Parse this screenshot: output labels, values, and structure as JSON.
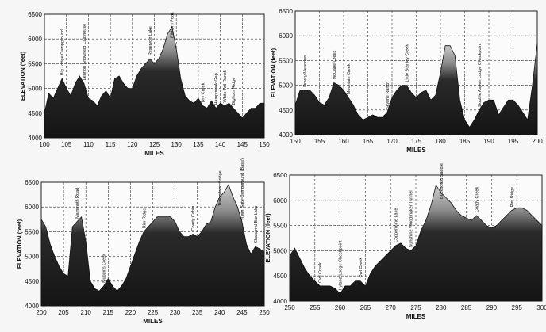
{
  "chart_data": [
    {
      "type": "area",
      "xlabel": "MILES",
      "ylabel": "ELEVATION (feet)",
      "xlim": [
        100,
        150
      ],
      "ylim": [
        4000,
        6500
      ],
      "xticks": [
        100,
        105,
        110,
        115,
        120,
        125,
        130,
        135,
        140,
        145,
        150
      ],
      "yticks": [
        4000,
        4500,
        5000,
        5500,
        6000,
        6500
      ],
      "x": [
        100,
        101,
        102,
        103,
        104,
        105,
        106,
        107,
        108,
        109,
        110,
        111,
        112,
        113,
        114,
        115,
        116,
        117,
        118,
        119,
        120,
        121,
        122,
        123,
        124,
        125,
        126,
        127,
        128,
        129,
        130,
        131,
        132,
        133,
        134,
        135,
        136,
        137,
        138,
        139,
        140,
        141,
        142,
        143,
        144,
        145,
        146,
        147,
        148,
        149,
        150
      ],
      "y": [
        4500,
        4900,
        4800,
        5000,
        5200,
        5000,
        4850,
        5100,
        5250,
        5100,
        4800,
        4750,
        4650,
        4850,
        4950,
        4800,
        5200,
        5250,
        5100,
        5000,
        5000,
        5250,
        5400,
        5500,
        5600,
        5500,
        5600,
        5800,
        6100,
        6250,
        5800,
        5200,
        4850,
        4750,
        4700,
        4800,
        4650,
        4600,
        4750,
        4600,
        4700,
        4650,
        4700,
        4600,
        4500,
        4400,
        4500,
        4600,
        4600,
        4700,
        4700
      ],
      "annotations": [
        {
          "x": 104,
          "text": "Big Lodge Campground"
        },
        {
          "x": 109,
          "text": "Lenhoh Snowfield Clubhouse"
        },
        {
          "x": 124,
          "text": "Reservoir Lake"
        },
        {
          "x": 129,
          "text": "Elkhorn Peak"
        },
        {
          "x": 136,
          "text": "Dry Creek"
        },
        {
          "x": 139,
          "text": "Hampbrook Gap"
        },
        {
          "x": 141,
          "text": "White Tail Ranch"
        },
        {
          "x": 143,
          "text": "Bighorn Ridge"
        }
      ]
    },
    {
      "type": "area",
      "xlabel": "MILES",
      "ylabel": "ELEVATION (feet)",
      "xlim": [
        150,
        200
      ],
      "ylim": [
        4000,
        6500
      ],
      "xticks": [
        150,
        155,
        160,
        165,
        170,
        175,
        180,
        185,
        190,
        195,
        200
      ],
      "yticks": [
        4000,
        4500,
        5000,
        5500,
        6000,
        6500
      ],
      "x": [
        150,
        151,
        152,
        153,
        154,
        155,
        156,
        157,
        158,
        159,
        160,
        161,
        162,
        163,
        164,
        165,
        166,
        167,
        168,
        169,
        170,
        171,
        172,
        173,
        174,
        175,
        176,
        177,
        178,
        179,
        180,
        181,
        182,
        183,
        184,
        185,
        186,
        187,
        188,
        189,
        190,
        191,
        192,
        193,
        194,
        195,
        196,
        197,
        198,
        199,
        200
      ],
      "y": [
        4600,
        4900,
        4900,
        4900,
        4800,
        4650,
        4600,
        4750,
        5050,
        5000,
        4900,
        4750,
        4600,
        4400,
        4300,
        4350,
        4400,
        4350,
        4350,
        4450,
        4750,
        4900,
        5000,
        5000,
        4850,
        4750,
        4850,
        4900,
        4700,
        4800,
        5250,
        5800,
        5800,
        5600,
        4700,
        4300,
        4150,
        4300,
        4500,
        4650,
        4700,
        4700,
        4400,
        4550,
        4700,
        4700,
        4600,
        4450,
        4300,
        5000,
        5850
      ],
      "annotations": [
        {
          "x": 152,
          "text": "Dowry Meadows"
        },
        {
          "x": 158,
          "text": "McCabe Creek"
        },
        {
          "x": 161,
          "text": "Mountain Creek"
        },
        {
          "x": 169,
          "text": "Skyline Ranch"
        },
        {
          "x": 173,
          "text": "Little Stanley Creek"
        },
        {
          "x": 188,
          "text": "Double Aspen Lodge Checkpoint"
        }
      ]
    },
    {
      "type": "area",
      "xlabel": "MILES",
      "ylabel": "ELEVATION (feet)",
      "xlim": [
        200,
        250
      ],
      "ylim": [
        4000,
        6500
      ],
      "xticks": [
        200,
        205,
        210,
        215,
        220,
        225,
        230,
        235,
        240,
        245,
        250
      ],
      "yticks": [
        4000,
        4500,
        5000,
        5500,
        6000,
        6500
      ],
      "x": [
        200,
        201,
        202,
        203,
        204,
        205,
        206,
        207,
        208,
        209,
        210,
        211,
        212,
        213,
        214,
        215,
        216,
        217,
        218,
        219,
        220,
        221,
        222,
        223,
        224,
        225,
        226,
        227,
        228,
        229,
        230,
        231,
        232,
        233,
        234,
        235,
        236,
        237,
        238,
        239,
        240,
        241,
        242,
        243,
        244,
        245,
        246,
        247,
        248,
        249,
        250
      ],
      "y": [
        5750,
        5600,
        5250,
        5000,
        4800,
        4650,
        4600,
        5600,
        5700,
        5800,
        5300,
        4500,
        4350,
        4300,
        4400,
        4550,
        4400,
        4300,
        4400,
        4550,
        4800,
        5050,
        5300,
        5500,
        5600,
        5700,
        5800,
        5800,
        5800,
        5800,
        5700,
        5500,
        5400,
        5400,
        5450,
        5400,
        5500,
        5650,
        5700,
        6000,
        6200,
        6300,
        6450,
        6200,
        6000,
        5700,
        5250,
        5050,
        5200,
        5150,
        5100
      ],
      "annotations": [
        {
          "x": 208,
          "text": "Mammoth Road"
        },
        {
          "x": 214,
          "text": "Muggins Creek"
        },
        {
          "x": 223,
          "text": "Rim Ridge"
        },
        {
          "x": 234,
          "text": "Coady Cabin"
        },
        {
          "x": 240,
          "text": "Timberland Bridge"
        },
        {
          "x": 245,
          "text": "Twin Gate Campground (Base)"
        },
        {
          "x": 248,
          "text": "Chaparral Bar Lake"
        }
      ]
    },
    {
      "type": "area",
      "xlabel": "MILES",
      "ylabel": "ELEVATION (feet)",
      "xlim": [
        250,
        300
      ],
      "ylim": [
        4000,
        6500
      ],
      "xticks": [
        250,
        255,
        260,
        265,
        270,
        275,
        280,
        285,
        290,
        295,
        300
      ],
      "yticks": [
        4000,
        4500,
        5000,
        5500,
        6000,
        6500
      ],
      "x": [
        250,
        251,
        252,
        253,
        254,
        255,
        256,
        257,
        258,
        259,
        260,
        261,
        262,
        263,
        264,
        265,
        266,
        267,
        268,
        269,
        270,
        271,
        272,
        273,
        274,
        275,
        276,
        277,
        278,
        279,
        280,
        281,
        282,
        283,
        284,
        285,
        286,
        287,
        288,
        289,
        290,
        291,
        292,
        293,
        294,
        295,
        296,
        297,
        298,
        299,
        300
      ],
      "y": [
        4900,
        5050,
        4850,
        4650,
        4500,
        4400,
        4300,
        4300,
        4300,
        4250,
        4150,
        4300,
        4300,
        4400,
        4400,
        4300,
        4550,
        4700,
        4800,
        4900,
        5000,
        5100,
        5150,
        5050,
        5000,
        5100,
        5400,
        5600,
        5900,
        6300,
        6150,
        6050,
        5950,
        5800,
        5700,
        5650,
        5600,
        5700,
        5600,
        5500,
        5450,
        5500,
        5600,
        5700,
        5800,
        5850,
        5850,
        5800,
        5700,
        5600,
        5500
      ],
      "annotations": [
        {
          "x": 256,
          "text": "Owl Creek"
        },
        {
          "x": 260,
          "text": "Hyland Lodge Checkpoint"
        },
        {
          "x": 264,
          "text": "Owl Creek"
        },
        {
          "x": 271,
          "text": "Coppermine Lake"
        },
        {
          "x": 274,
          "text": "Sunshine Woodmaker Tunnel"
        },
        {
          "x": 280,
          "text": "Buckboard Saddle"
        },
        {
          "x": 287,
          "text": "Coady Creek"
        },
        {
          "x": 294,
          "text": "Rim Ridge"
        }
      ]
    }
  ]
}
